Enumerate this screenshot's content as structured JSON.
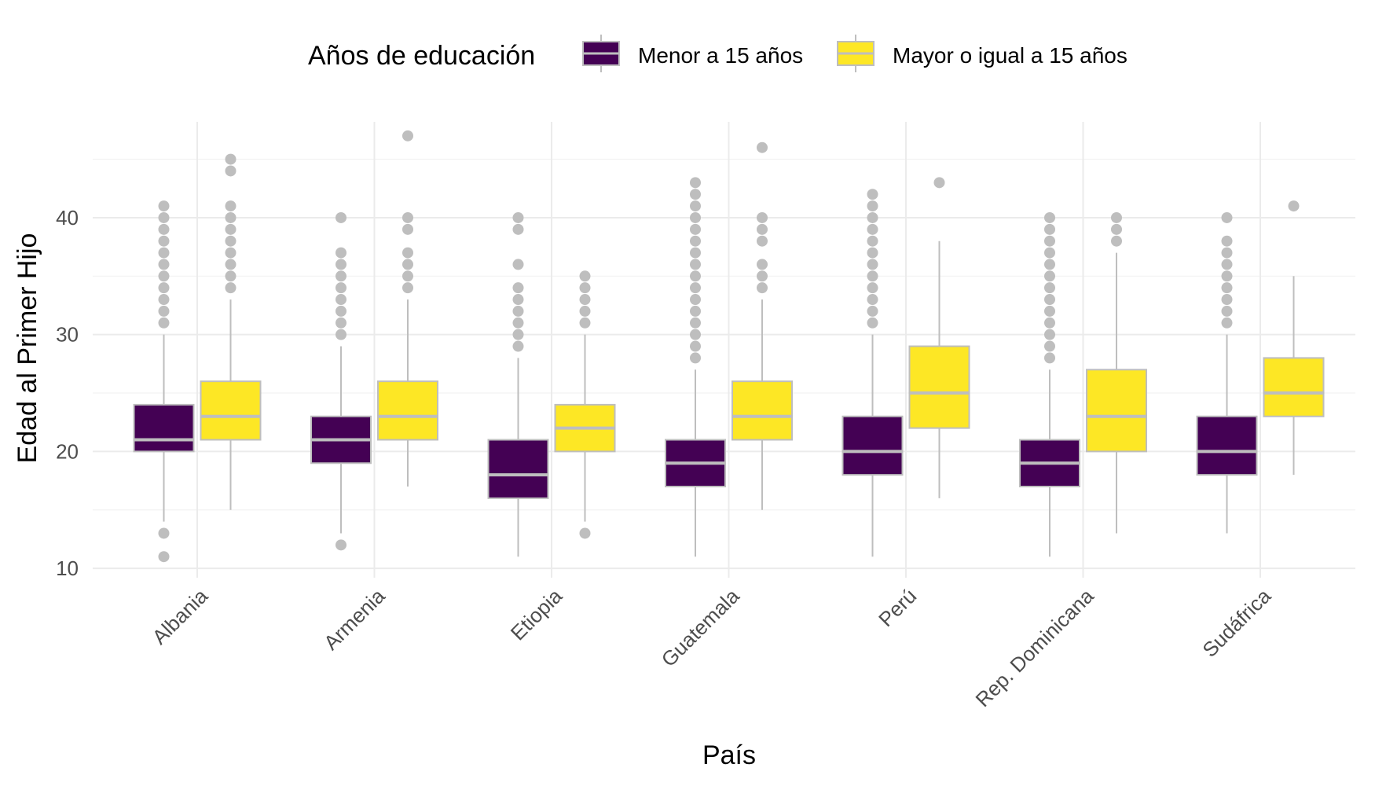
{
  "chart_data": {
    "type": "boxplot",
    "title": "",
    "xlabel": "País",
    "ylabel": "Edad al Primer Hijo",
    "ylim": [
      9.2,
      48.2
    ],
    "yticks": [
      10,
      20,
      30,
      40
    ],
    "grid": true,
    "legend": {
      "title": "Años de educación",
      "position": "top"
    },
    "categories": [
      "Albania",
      "Armenia",
      "Etiopia",
      "Guatemala",
      "Perú",
      "Rep. Dominicana",
      "Sudáfrica"
    ],
    "series": [
      {
        "name": "Menor a 15 años",
        "color": "#440154",
        "boxes": [
          {
            "lower_whisker": 14,
            "q1": 20,
            "median": 21,
            "q3": 24,
            "upper_whisker": 30,
            "outliers": [
              11,
              13,
              31,
              32,
              33,
              34,
              35,
              36,
              37,
              38,
              39,
              40,
              41
            ]
          },
          {
            "lower_whisker": 13,
            "q1": 19,
            "median": 21,
            "q3": 23,
            "upper_whisker": 29,
            "outliers": [
              12,
              30,
              31,
              32,
              33,
              34,
              35,
              36,
              37,
              40
            ]
          },
          {
            "lower_whisker": 11,
            "q1": 16,
            "median": 18,
            "q3": 21,
            "upper_whisker": 28,
            "outliers": [
              29,
              30,
              31,
              32,
              33,
              34,
              36,
              39,
              40
            ]
          },
          {
            "lower_whisker": 11,
            "q1": 17,
            "median": 19,
            "q3": 21,
            "upper_whisker": 27,
            "outliers": [
              28,
              29,
              30,
              31,
              32,
              33,
              34,
              35,
              36,
              37,
              38,
              39,
              40,
              41,
              42,
              43
            ]
          },
          {
            "lower_whisker": 11,
            "q1": 18,
            "median": 20,
            "q3": 23,
            "upper_whisker": 30,
            "outliers": [
              31,
              32,
              33,
              34,
              35,
              36,
              37,
              38,
              39,
              40,
              41,
              42
            ]
          },
          {
            "lower_whisker": 11,
            "q1": 17,
            "median": 19,
            "q3": 21,
            "upper_whisker": 27,
            "outliers": [
              28,
              29,
              30,
              31,
              32,
              33,
              34,
              35,
              36,
              37,
              38,
              39,
              40
            ]
          },
          {
            "lower_whisker": 13,
            "q1": 18,
            "median": 20,
            "q3": 23,
            "upper_whisker": 30,
            "outliers": [
              31,
              32,
              33,
              34,
              35,
              36,
              37,
              38,
              40
            ]
          }
        ]
      },
      {
        "name": "Mayor o igual a 15 años",
        "color": "#fde725",
        "boxes": [
          {
            "lower_whisker": 15,
            "q1": 21,
            "median": 23,
            "q3": 26,
            "upper_whisker": 33,
            "outliers": [
              34,
              35,
              36,
              37,
              38,
              39,
              40,
              41,
              44,
              45
            ]
          },
          {
            "lower_whisker": 17,
            "q1": 21,
            "median": 23,
            "q3": 26,
            "upper_whisker": 33,
            "outliers": [
              34,
              35,
              36,
              37,
              39,
              40,
              47
            ]
          },
          {
            "lower_whisker": 14,
            "q1": 20,
            "median": 22,
            "q3": 24,
            "upper_whisker": 30,
            "outliers": [
              13,
              31,
              32,
              33,
              34,
              35
            ]
          },
          {
            "lower_whisker": 15,
            "q1": 21,
            "median": 23,
            "q3": 26,
            "upper_whisker": 33,
            "outliers": [
              34,
              35,
              36,
              38,
              39,
              40,
              46
            ]
          },
          {
            "lower_whisker": 16,
            "q1": 22,
            "median": 25,
            "q3": 29,
            "upper_whisker": 38,
            "outliers": [
              43
            ]
          },
          {
            "lower_whisker": 13,
            "q1": 20,
            "median": 23,
            "q3": 27,
            "upper_whisker": 37,
            "outliers": [
              38,
              39,
              40
            ]
          },
          {
            "lower_whisker": 18,
            "q1": 23,
            "median": 25,
            "q3": 28,
            "upper_whisker": 35,
            "outliers": [
              41
            ]
          }
        ]
      }
    ]
  }
}
